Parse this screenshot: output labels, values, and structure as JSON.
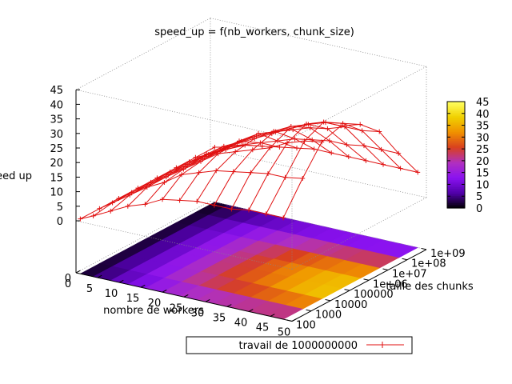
{
  "chart_data": {
    "type": "heatmap",
    "title": "speed_up = f(nb_workers, chunk_size)",
    "xlabel": "nombre de workers",
    "ylabel": "taille des chunks",
    "zlabel": "speed up",
    "x_ticks": [
      0,
      5,
      10,
      15,
      20,
      25,
      30,
      35,
      40,
      45,
      50
    ],
    "xlim": [
      0,
      50
    ],
    "y_ticks": [
      "100",
      "1000",
      "10000",
      "100000",
      "1e+06",
      "1e+07",
      "1e+08",
      "1e+09"
    ],
    "y_scale": "log",
    "z_ticks": [
      0,
      5,
      10,
      15,
      20,
      25,
      30,
      35,
      40,
      45
    ],
    "zlim": [
      0,
      45
    ],
    "colorbar_ticks": [
      0,
      5,
      10,
      15,
      20,
      25,
      30,
      35,
      40,
      45
    ],
    "legend": {
      "entries": [
        "travail de 1000000000"
      ],
      "placement": "bottom-center",
      "series_color": "#e01010"
    },
    "x": [
      1,
      4,
      8,
      12,
      16,
      20,
      24,
      28,
      32,
      36,
      40,
      44,
      48
    ],
    "y_exponents": [
      2,
      3,
      4,
      5,
      6,
      7,
      8,
      9
    ],
    "series": [
      {
        "name": "travail de 1000000000",
        "rows": [
          [
            1,
            3,
            6,
            9,
            11,
            14,
            15,
            16,
            16,
            16,
            17,
            17,
            17
          ],
          [
            1,
            4,
            8,
            12,
            15,
            19,
            21,
            23,
            24,
            25,
            26,
            26,
            27
          ],
          [
            1,
            4,
            8,
            12,
            16,
            20,
            24,
            26,
            28,
            30,
            33,
            35,
            36
          ],
          [
            1,
            4,
            8,
            12,
            16,
            20,
            24,
            27,
            30,
            33,
            36,
            38,
            38
          ],
          [
            1,
            4,
            8,
            12,
            16,
            20,
            23,
            26,
            29,
            31,
            33,
            34,
            35
          ],
          [
            1,
            4,
            8,
            12,
            15,
            19,
            21,
            23,
            25,
            26,
            28,
            28,
            29
          ],
          [
            1,
            3,
            6,
            9,
            11,
            13,
            15,
            16,
            17,
            17,
            18,
            18,
            18
          ],
          [
            1,
            2,
            4,
            5,
            6,
            7,
            8,
            8,
            8,
            8,
            8,
            8,
            8
          ]
        ]
      }
    ],
    "colormap": [
      "#000000",
      "#5000a8",
      "#8a12f0",
      "#b030c0",
      "#d84020",
      "#f09000",
      "#f0d000",
      "#ffff60"
    ]
  }
}
